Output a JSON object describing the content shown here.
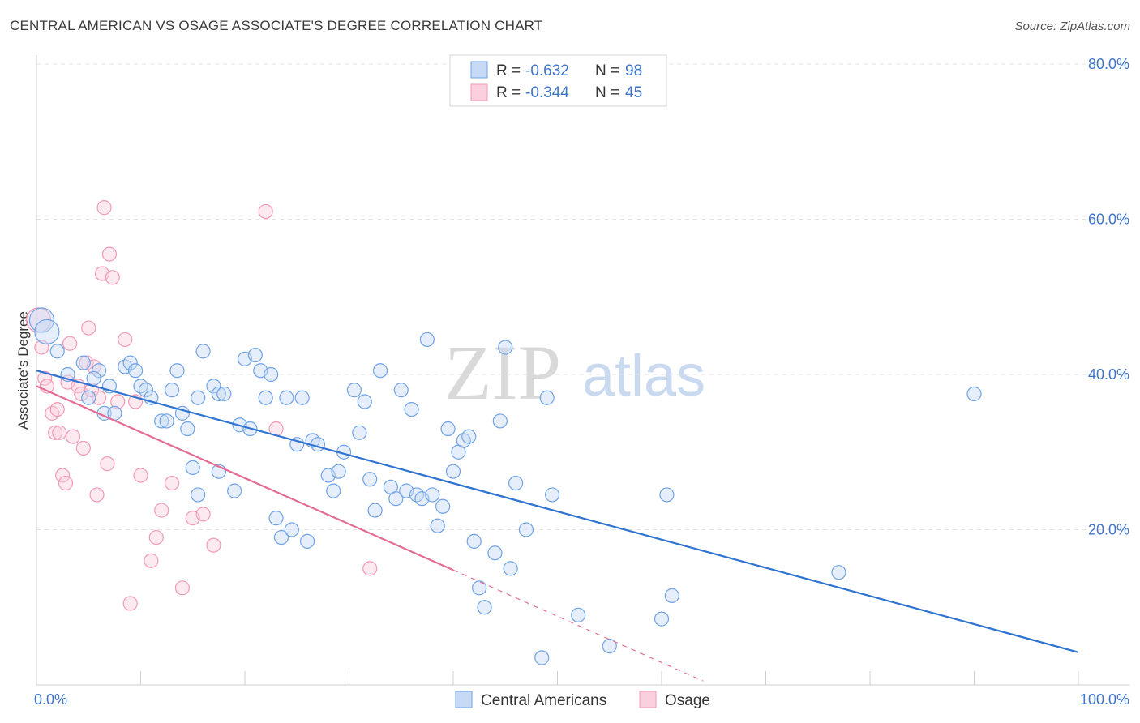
{
  "title": "CENTRAL AMERICAN VS OSAGE ASSOCIATE'S DEGREE CORRELATION CHART",
  "source": "Source: ZipAtlas.com",
  "watermark": {
    "zip": "ZIP",
    "atlas": "atlas"
  },
  "legend_box": [
    {
      "r_label": "R =",
      "r_value": "-0.632",
      "n_label": "N =",
      "n_value": "98"
    },
    {
      "r_label": "R =",
      "r_value": "-0.344",
      "n_label": "N =",
      "n_value": "45"
    }
  ],
  "chart_data": {
    "type": "scatter",
    "title": "CENTRAL AMERICAN VS OSAGE ASSOCIATE'S DEGREE CORRELATION CHART",
    "xlabel": "",
    "ylabel": "Associate's Degree",
    "xlim": [
      0,
      100
    ],
    "ylim": [
      0,
      80
    ],
    "x_tick_labels": [
      "0.0%",
      "100.0%"
    ],
    "y_ticks": [
      20,
      40,
      60,
      80
    ],
    "y_tick_labels": [
      "20.0%",
      "40.0%",
      "60.0%",
      "80.0%"
    ],
    "grid": "horizontal dashed",
    "legend_position": "bottom-center",
    "series": [
      {
        "name": "Central Americans",
        "color": "#6fa3e6",
        "line_color": "#2f73d0",
        "trend": {
          "x": [
            0,
            100
          ],
          "y": [
            40.5,
            4.2
          ]
        },
        "points": [
          [
            0.5,
            47
          ],
          [
            1,
            45.5
          ],
          [
            2,
            43
          ],
          [
            4.5,
            41.5
          ],
          [
            6,
            40.5
          ],
          [
            3,
            40
          ],
          [
            5.5,
            39.5
          ],
          [
            7,
            38.5
          ],
          [
            5,
            37
          ],
          [
            6.5,
            35
          ],
          [
            7.5,
            35
          ],
          [
            8.5,
            41
          ],
          [
            9,
            41.5
          ],
          [
            9.5,
            40.5
          ],
          [
            10,
            38.5
          ],
          [
            10.5,
            38
          ],
          [
            11,
            37
          ],
          [
            12,
            34
          ],
          [
            12.5,
            34
          ],
          [
            13,
            38
          ],
          [
            13.5,
            40.5
          ],
          [
            14,
            35
          ],
          [
            14.5,
            33
          ],
          [
            15,
            28
          ],
          [
            15.5,
            24.5
          ],
          [
            15.5,
            37
          ],
          [
            16,
            43
          ],
          [
            17,
            38.5
          ],
          [
            17.5,
            27.5
          ],
          [
            17.5,
            37.5
          ],
          [
            18,
            37.5
          ],
          [
            19,
            25
          ],
          [
            19.5,
            33.5
          ],
          [
            20,
            42
          ],
          [
            20.5,
            33
          ],
          [
            21,
            42.5
          ],
          [
            21.5,
            40.5
          ],
          [
            22,
            37
          ],
          [
            22.5,
            40
          ],
          [
            23,
            21.5
          ],
          [
            23.5,
            19
          ],
          [
            24,
            37
          ],
          [
            24.5,
            20
          ],
          [
            25,
            31
          ],
          [
            25.5,
            37
          ],
          [
            26,
            18.5
          ],
          [
            26.5,
            31.5
          ],
          [
            27,
            31
          ],
          [
            28,
            27
          ],
          [
            28.5,
            25
          ],
          [
            29,
            27.5
          ],
          [
            29.5,
            30
          ],
          [
            30.5,
            38
          ],
          [
            31,
            32.5
          ],
          [
            31.5,
            36.5
          ],
          [
            32,
            26.5
          ],
          [
            32.5,
            22.5
          ],
          [
            33,
            40.5
          ],
          [
            34,
            25.5
          ],
          [
            34.5,
            24
          ],
          [
            35,
            38
          ],
          [
            35.5,
            25
          ],
          [
            36,
            35.5
          ],
          [
            36.5,
            24.5
          ],
          [
            37,
            24
          ],
          [
            37.5,
            44.5
          ],
          [
            38,
            24.5
          ],
          [
            38.5,
            20.5
          ],
          [
            39,
            23
          ],
          [
            39.5,
            33
          ],
          [
            40,
            27.5
          ],
          [
            40.5,
            30
          ],
          [
            41,
            31.5
          ],
          [
            41.5,
            32
          ],
          [
            42,
            18.5
          ],
          [
            42.5,
            12.5
          ],
          [
            43,
            10
          ],
          [
            44,
            17
          ],
          [
            44.5,
            34
          ],
          [
            45,
            43.5
          ],
          [
            45.5,
            15
          ],
          [
            46,
            26
          ],
          [
            47,
            20
          ],
          [
            48.5,
            3.5
          ],
          [
            49,
            37
          ],
          [
            49.5,
            24.5
          ],
          [
            52,
            9
          ],
          [
            55,
            5
          ],
          [
            60,
            8.5
          ],
          [
            60.5,
            24.5
          ],
          [
            61,
            11.5
          ],
          [
            77,
            14.5
          ],
          [
            90,
            37.5
          ]
        ]
      },
      {
        "name": "Osage",
        "color": "#f29ab5",
        "line_color": "#e46c95",
        "trend": {
          "x": [
            0,
            40
          ],
          "y": [
            38.5,
            14.8
          ]
        },
        "trend_dashed": {
          "x": [
            40,
            64
          ],
          "y": [
            14.8,
            0.5
          ]
        },
        "points": [
          [
            0.2,
            47
          ],
          [
            0.5,
            43.5
          ],
          [
            0.8,
            39.5
          ],
          [
            1,
            38.5
          ],
          [
            1.5,
            35
          ],
          [
            1.8,
            32.5
          ],
          [
            2,
            35.5
          ],
          [
            2.2,
            32.5
          ],
          [
            2.5,
            27
          ],
          [
            2.8,
            26
          ],
          [
            3,
            39
          ],
          [
            3.2,
            44
          ],
          [
            3.5,
            32
          ],
          [
            4,
            38.5
          ],
          [
            4.3,
            37.5
          ],
          [
            4.5,
            30.5
          ],
          [
            4.8,
            41.5
          ],
          [
            5,
            46
          ],
          [
            5.3,
            38
          ],
          [
            5.5,
            41
          ],
          [
            5.8,
            24.5
          ],
          [
            6,
            37
          ],
          [
            6.3,
            53
          ],
          [
            6.5,
            61.5
          ],
          [
            6.8,
            28.5
          ],
          [
            7,
            55.5
          ],
          [
            7.3,
            52.5
          ],
          [
            7.8,
            36.5
          ],
          [
            8.5,
            44.5
          ],
          [
            9,
            10.5
          ],
          [
            9.5,
            36.5
          ],
          [
            10,
            27
          ],
          [
            11,
            16
          ],
          [
            11.5,
            19
          ],
          [
            12,
            22.5
          ],
          [
            13,
            26
          ],
          [
            14,
            12.5
          ],
          [
            15,
            21.5
          ],
          [
            16,
            22
          ],
          [
            17,
            18
          ],
          [
            22,
            61
          ],
          [
            23,
            33
          ],
          [
            32,
            15
          ]
        ]
      }
    ]
  }
}
